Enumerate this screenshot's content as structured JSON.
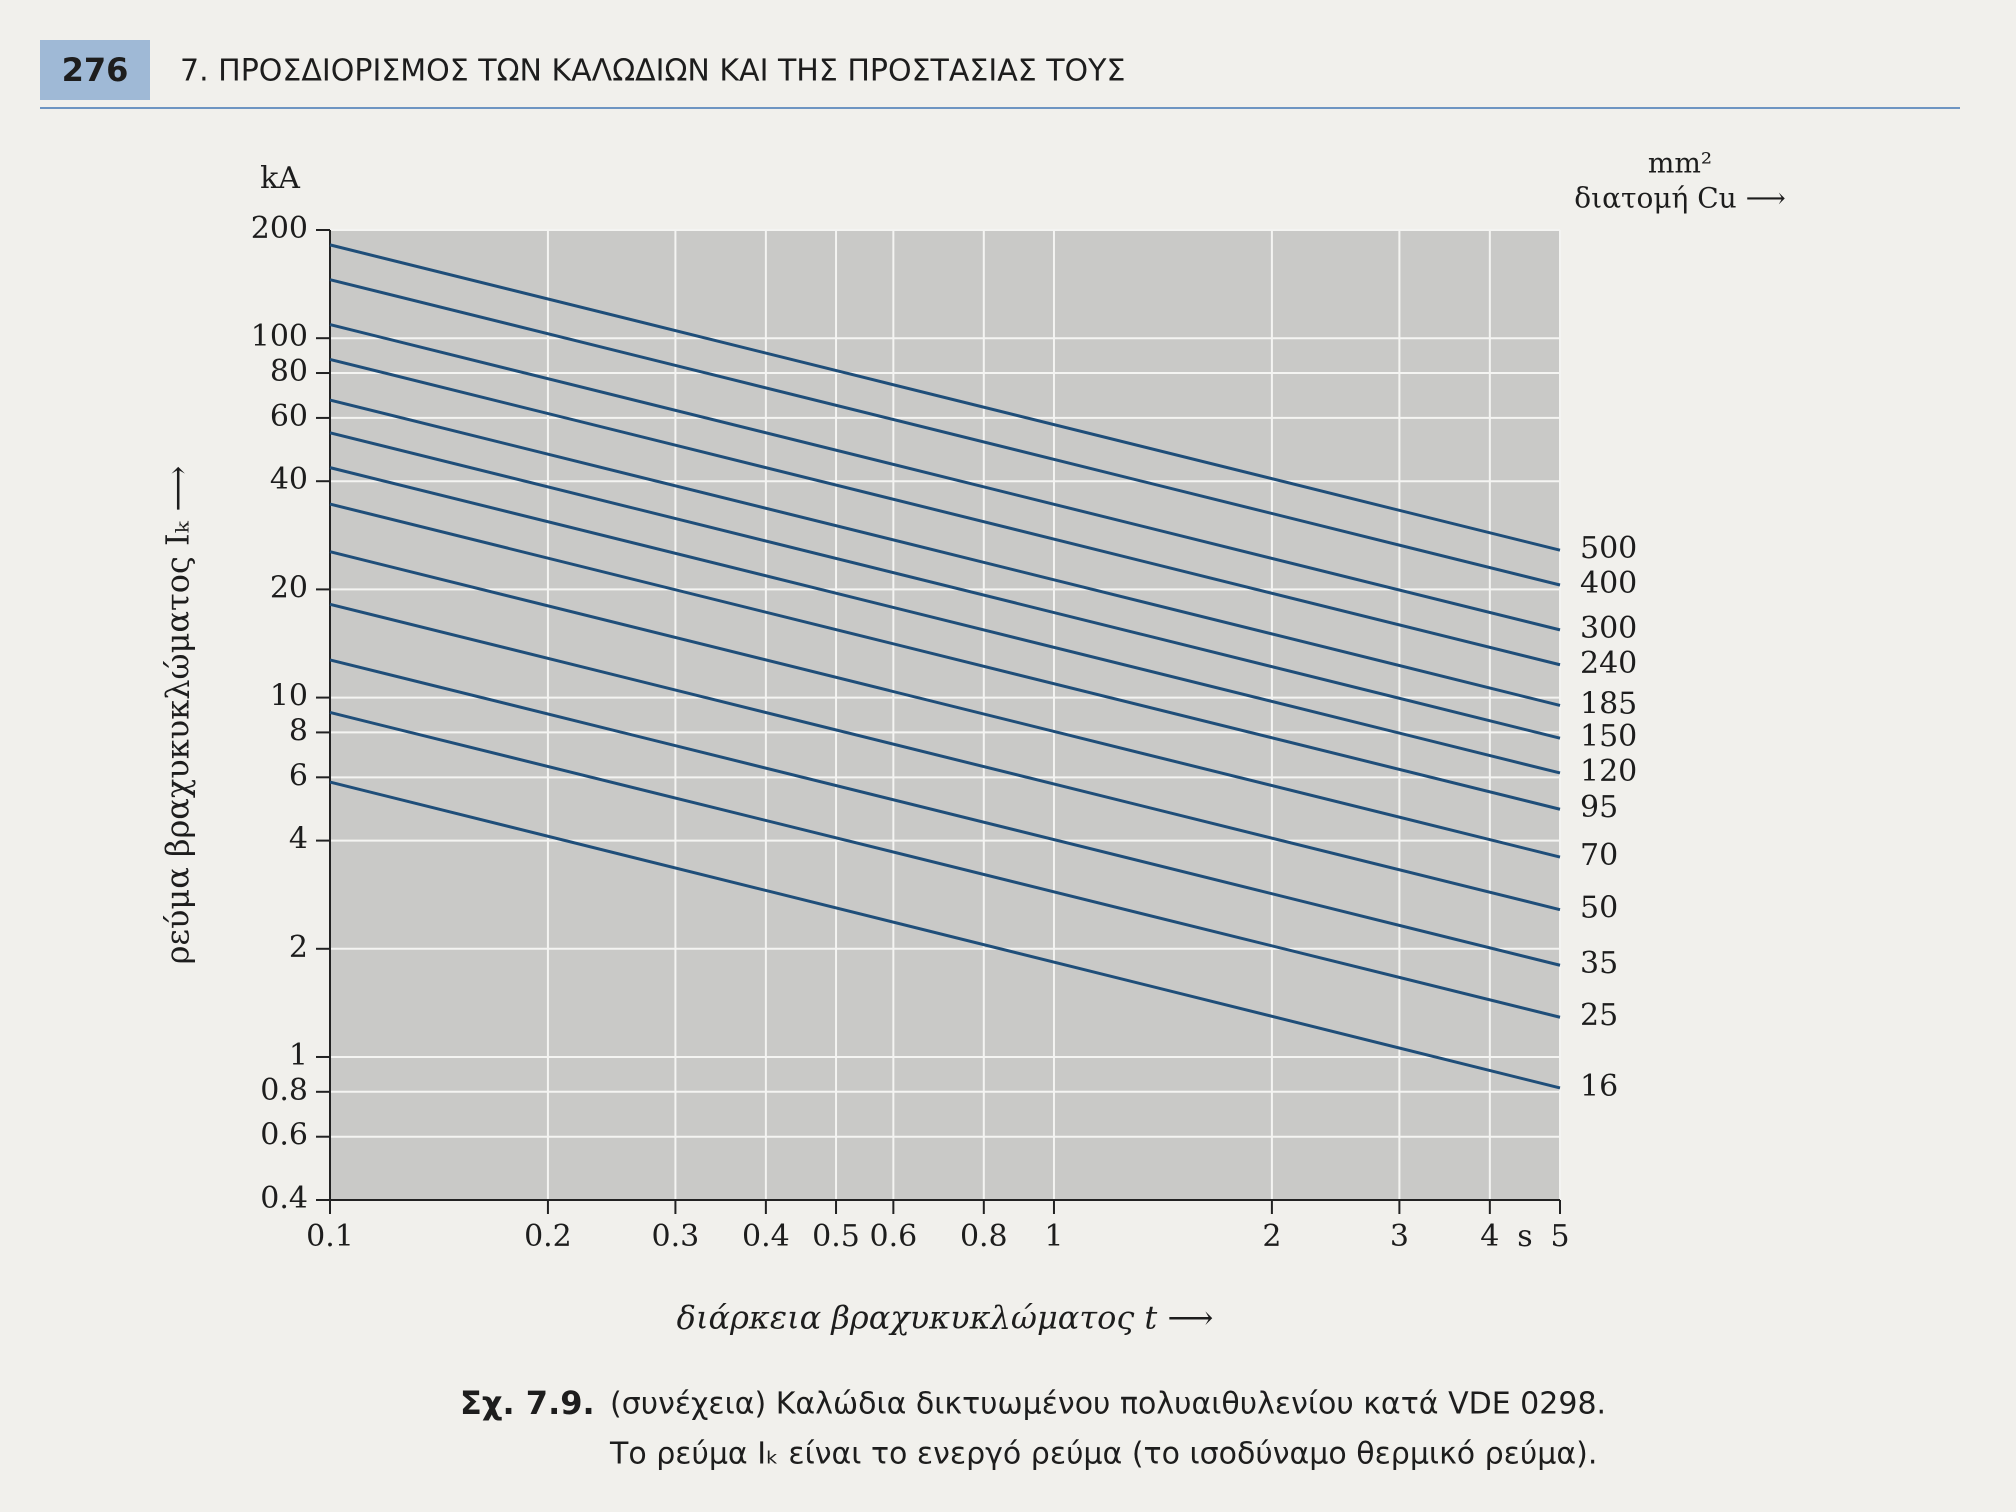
{
  "header": {
    "page_number": "276",
    "title": "7. ΠΡΟΣΔΙΟΡΙΣΜΟΣ ΤΩΝ ΚΑΛΩΔΙΩΝ ΚΑΙ ΤΗΣ ΠΡΟΣΤΑΣΙΑΣ ΤΟΥΣ"
  },
  "caption": {
    "label": "Σχ. 7.9.",
    "text": "(συνέχεια)  Καλώδια δικτυωμένου πολυαιθυλενίου κατά VDE 0298.",
    "note": "Το ρεύμα Iₖ είναι το ενεργό ρεύμα (το ισοδύναμο θερμικό ρεύμα)."
  },
  "chart_data": {
    "type": "line",
    "x_label": "διάρκεια βραχυκυκλώματος t ⟶",
    "x_unit": "s",
    "y_label": "ρεύμα βραχυκυκλώματος Iₖ ⟶",
    "y_unit": "kA",
    "legend_title": "διατομή Cu ⟶",
    "legend_unit": "mm²",
    "log_x": true,
    "log_y": true,
    "grid": true,
    "xlim": [
      0.1,
      5
    ],
    "xticks": [
      0.1,
      0.2,
      0.3,
      0.4,
      0.5,
      0.6,
      0.8,
      1,
      2,
      3,
      4,
      5
    ],
    "ylim": [
      0.4,
      200
    ],
    "yticks": [
      0.4,
      0.6,
      0.8,
      1,
      2,
      4,
      6,
      8,
      10,
      20,
      40,
      60,
      80,
      100,
      200
    ],
    "x": [
      0.1,
      5
    ],
    "series": [
      {
        "name": "16",
        "color": "#1f4e79",
        "values": [
          5.82,
          0.82
        ]
      },
      {
        "name": "25",
        "color": "#1f4e79",
        "values": [
          9.09,
          1.29
        ]
      },
      {
        "name": "35",
        "color": "#1f4e79",
        "values": [
          12.73,
          1.8
        ]
      },
      {
        "name": "50",
        "color": "#1f4e79",
        "values": [
          18.18,
          2.57
        ]
      },
      {
        "name": "70",
        "color": "#1f4e79",
        "values": [
          25.46,
          3.6
        ]
      },
      {
        "name": "95",
        "color": "#1f4e79",
        "values": [
          34.55,
          4.89
        ]
      },
      {
        "name": "120",
        "color": "#1f4e79",
        "values": [
          43.64,
          6.17
        ]
      },
      {
        "name": "150",
        "color": "#1f4e79",
        "values": [
          54.55,
          7.71
        ]
      },
      {
        "name": "185",
        "color": "#1f4e79",
        "values": [
          67.28,
          9.51
        ]
      },
      {
        "name": "240",
        "color": "#1f4e79",
        "values": [
          87.28,
          12.34
        ]
      },
      {
        "name": "300",
        "color": "#1f4e79",
        "values": [
          109.1,
          15.43
        ]
      },
      {
        "name": "400",
        "color": "#1f4e79",
        "values": [
          145.5,
          20.57
        ]
      },
      {
        "name": "500",
        "color": "#1f4e79",
        "values": [
          181.8,
          25.71
        ]
      }
    ]
  }
}
